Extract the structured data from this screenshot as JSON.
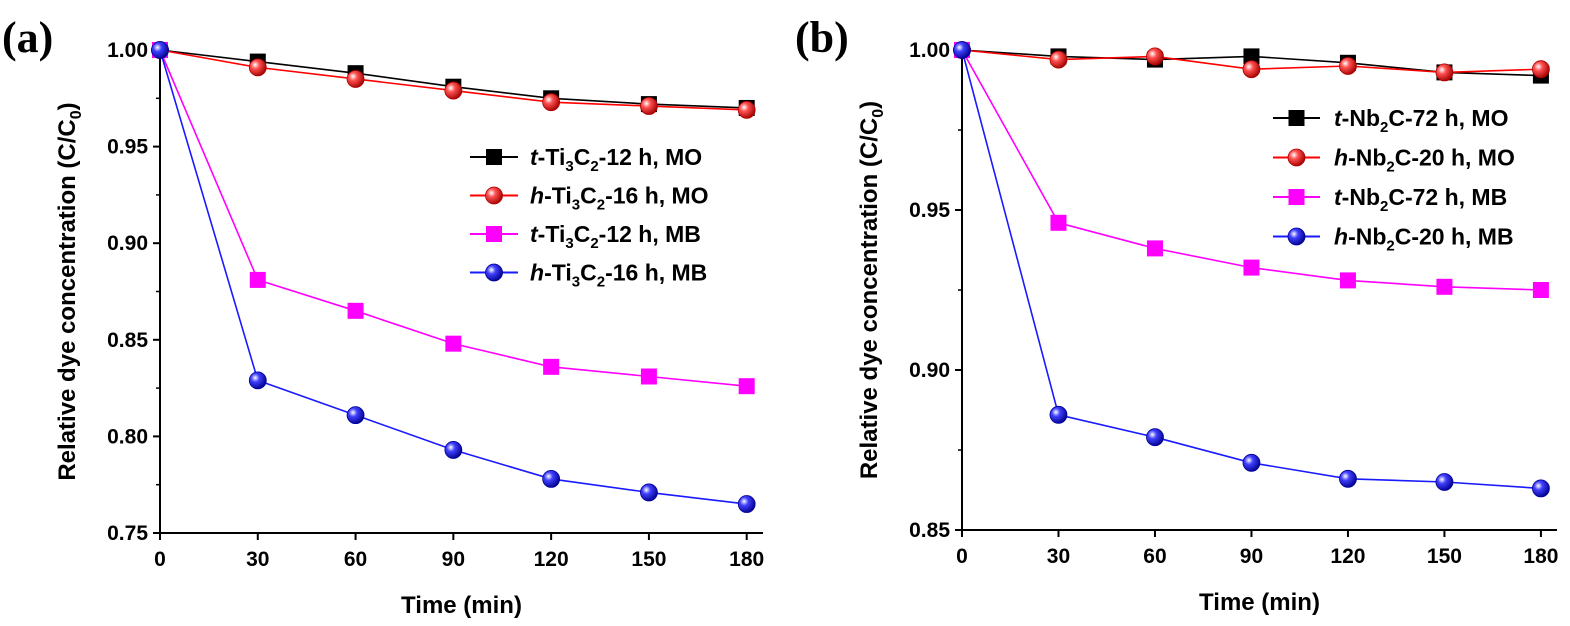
{
  "panel_labels": [
    "(a)",
    "(b)"
  ],
  "chart_data": [
    {
      "type": "line",
      "panel": "(a)",
      "xlabel": "Time (min)",
      "ylabel": "Relative dye concentration (C/C0)",
      "xlim": [
        0,
        185
      ],
      "ylim": [
        0.75,
        1.0
      ],
      "xticks": [
        0,
        30,
        60,
        90,
        120,
        150,
        180
      ],
      "yticks": [
        "0.75",
        "0.80",
        "0.85",
        "0.90",
        "0.95",
        "1.00"
      ],
      "legend_position": "right",
      "x": [
        0,
        30,
        60,
        90,
        120,
        150,
        180
      ],
      "series": [
        {
          "name": "t-Ti3C2-12 h, MO",
          "legend": [
            {
              "t": "t",
              "i": true
            },
            {
              "t": "-Ti"
            },
            {
              "t": "3",
              "sub": true
            },
            {
              "t": "C"
            },
            {
              "t": "2",
              "sub": true
            },
            {
              "t": "-12 h, MO"
            }
          ],
          "color": "#000000",
          "marker": "square",
          "values": [
            1.0,
            0.994,
            0.988,
            0.981,
            0.975,
            0.972,
            0.97
          ]
        },
        {
          "name": "h-Ti3C2-16 h, MO",
          "legend": [
            {
              "t": "h",
              "i": true
            },
            {
              "t": "-Ti"
            },
            {
              "t": "3",
              "sub": true
            },
            {
              "t": "C"
            },
            {
              "t": "2",
              "sub": true
            },
            {
              "t": "-16 h, MO"
            }
          ],
          "color": "#ff0000",
          "marker": "sphere",
          "values": [
            1.0,
            0.991,
            0.985,
            0.979,
            0.973,
            0.971,
            0.969
          ]
        },
        {
          "name": "t-Ti3C2-12 h, MB",
          "legend": [
            {
              "t": "t",
              "i": true
            },
            {
              "t": "-Ti"
            },
            {
              "t": "3",
              "sub": true
            },
            {
              "t": "C"
            },
            {
              "t": "2",
              "sub": true
            },
            {
              "t": "-12 h, MB"
            }
          ],
          "color": "#ff00ff",
          "marker": "square",
          "values": [
            1.0,
            0.881,
            0.865,
            0.848,
            0.836,
            0.831,
            0.826
          ]
        },
        {
          "name": "h-Ti3C2-16 h, MB",
          "legend": [
            {
              "t": "h",
              "i": true
            },
            {
              "t": "-Ti"
            },
            {
              "t": "3",
              "sub": true
            },
            {
              "t": "C"
            },
            {
              "t": "2",
              "sub": true
            },
            {
              "t": "-16 h, MB"
            }
          ],
          "color": "#1a1aff",
          "marker": "sphere",
          "values": [
            1.0,
            0.829,
            0.811,
            0.793,
            0.778,
            0.771,
            0.765
          ]
        }
      ]
    },
    {
      "type": "line",
      "panel": "(b)",
      "xlabel": "Time (min)",
      "ylabel": "Relative dye concentration (C/C0)",
      "xlim": [
        0,
        185
      ],
      "ylim": [
        0.85,
        1.0
      ],
      "xticks": [
        0,
        30,
        60,
        90,
        120,
        150,
        180
      ],
      "yticks": [
        "0.85",
        "0.90",
        "0.95",
        "1.00"
      ],
      "legend_position": "right",
      "x": [
        0,
        30,
        60,
        90,
        120,
        150,
        180
      ],
      "series": [
        {
          "name": "t-Nb2C-72 h, MO",
          "legend": [
            {
              "t": "t",
              "i": true
            },
            {
              "t": "-Nb"
            },
            {
              "t": "2",
              "sub": true
            },
            {
              "t": "C-72 h, MO"
            }
          ],
          "color": "#000000",
          "marker": "square",
          "values": [
            1.0,
            0.998,
            0.997,
            0.998,
            0.996,
            0.993,
            0.992
          ]
        },
        {
          "name": "h-Nb2C-20 h, MO",
          "legend": [
            {
              "t": "h",
              "i": true
            },
            {
              "t": "-Nb"
            },
            {
              "t": "2",
              "sub": true
            },
            {
              "t": "C-20 h, MO"
            }
          ],
          "color": "#ff0000",
          "marker": "sphere",
          "values": [
            1.0,
            0.997,
            0.998,
            0.994,
            0.995,
            0.993,
            0.994
          ]
        },
        {
          "name": "t-Nb2C-72 h, MB",
          "legend": [
            {
              "t": "t",
              "i": true
            },
            {
              "t": "-Nb"
            },
            {
              "t": "2",
              "sub": true
            },
            {
              "t": "C-72 h, MB"
            }
          ],
          "color": "#ff00ff",
          "marker": "square",
          "values": [
            1.0,
            0.946,
            0.938,
            0.932,
            0.928,
            0.926,
            0.925
          ]
        },
        {
          "name": "h-Nb2C-20 h, MB",
          "legend": [
            {
              "t": "h",
              "i": true
            },
            {
              "t": "-Nb"
            },
            {
              "t": "2",
              "sub": true
            },
            {
              "t": "C-20 h, MB"
            }
          ],
          "color": "#1a1aff",
          "marker": "sphere",
          "values": [
            1.0,
            0.886,
            0.879,
            0.871,
            0.866,
            0.865,
            0.863
          ]
        }
      ]
    }
  ]
}
